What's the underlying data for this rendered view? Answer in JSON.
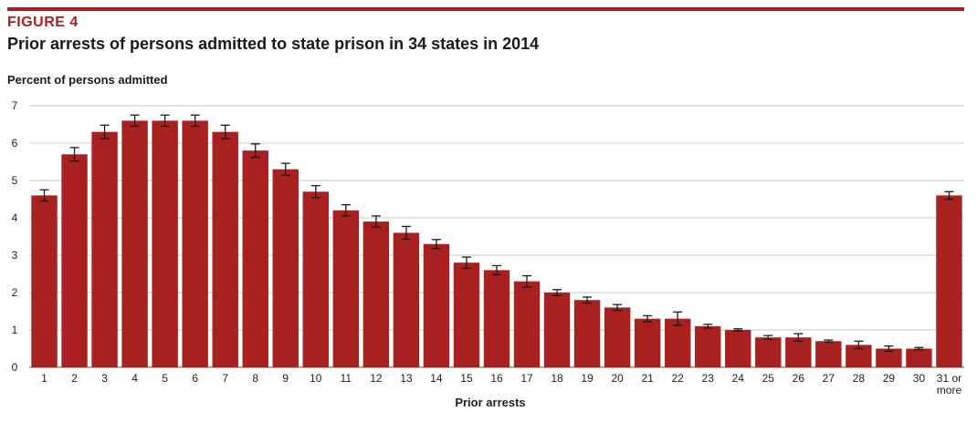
{
  "figure_label": "FIGURE 4",
  "chart_data": {
    "type": "bar",
    "title": "Prior arrests of persons admitted to state prison in 34 states in 2014",
    "ylabel": "Percent of persons admitted",
    "xlabel": "Prior arrests",
    "ylim": [
      0,
      7
    ],
    "yticks": [
      "0",
      "1",
      "2",
      "3",
      "4",
      "5",
      "6",
      "7"
    ],
    "grid": true,
    "categories": [
      "1",
      "2",
      "3",
      "4",
      "5",
      "6",
      "7",
      "8",
      "9",
      "10",
      "11",
      "12",
      "13",
      "14",
      "15",
      "16",
      "17",
      "18",
      "19",
      "20",
      "21",
      "22",
      "23",
      "24",
      "25",
      "26",
      "27",
      "28",
      "29",
      "30",
      "31 or more"
    ],
    "values": [
      4.6,
      5.7,
      6.3,
      6.6,
      6.6,
      6.6,
      6.3,
      5.8,
      5.3,
      4.7,
      4.2,
      3.9,
      3.6,
      3.3,
      2.8,
      2.6,
      2.3,
      2.0,
      1.8,
      1.6,
      1.3,
      1.3,
      1.1,
      1.0,
      0.8,
      0.8,
      0.7,
      0.6,
      0.5,
      0.5,
      4.6
    ],
    "errors": [
      0.15,
      0.18,
      0.18,
      0.15,
      0.15,
      0.15,
      0.18,
      0.18,
      0.16,
      0.16,
      0.15,
      0.15,
      0.17,
      0.12,
      0.15,
      0.12,
      0.15,
      0.08,
      0.08,
      0.08,
      0.08,
      0.18,
      0.05,
      0.03,
      0.05,
      0.1,
      0.03,
      0.1,
      0.07,
      0.03,
      0.1
    ],
    "colors": {
      "bar": "#a8201f",
      "error": "#1a1a1a",
      "grid": "#c9c9c9",
      "accent": "#a8201f"
    }
  }
}
